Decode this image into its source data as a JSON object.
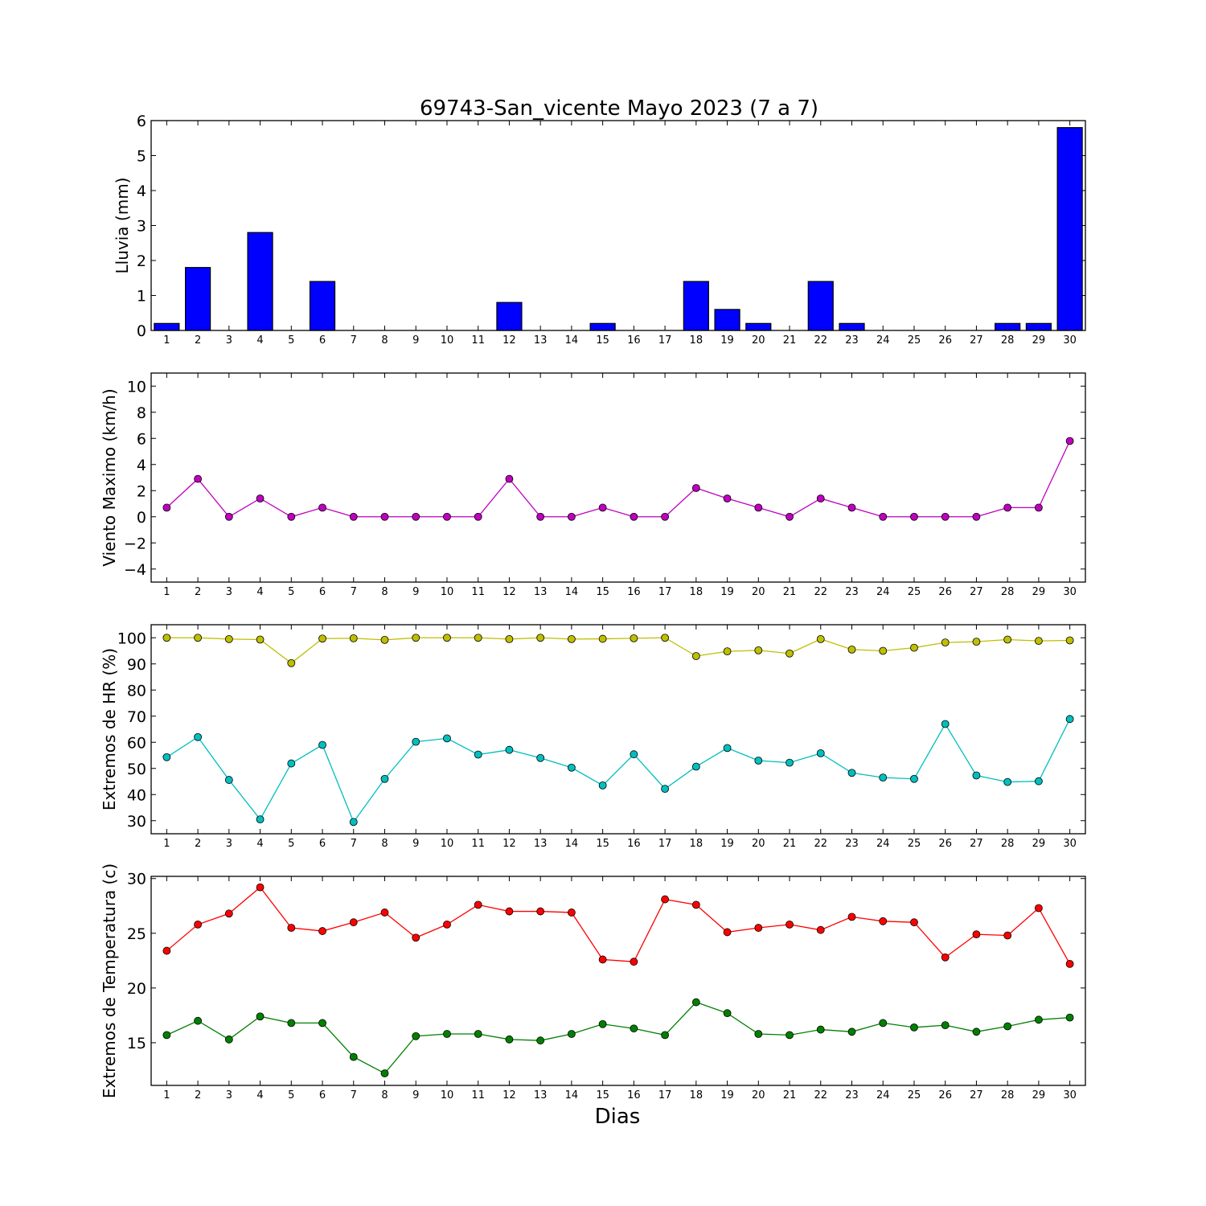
{
  "title": "69743-San_vicente Mayo 2023  (7 a 7)",
  "xlabel": "Dias",
  "chart_data": [
    {
      "type": "bar",
      "ylabel": "Lluvia (mm)",
      "ylim": [
        0,
        6
      ],
      "yticks": [
        "0",
        "1",
        "2",
        "3",
        "4",
        "5",
        "6"
      ],
      "categories": [
        "1",
        "2",
        "3",
        "4",
        "5",
        "6",
        "7",
        "8",
        "9",
        "10",
        "11",
        "12",
        "13",
        "14",
        "15",
        "16",
        "17",
        "18",
        "19",
        "20",
        "21",
        "22",
        "23",
        "24",
        "25",
        "26",
        "27",
        "28",
        "29",
        "30"
      ],
      "values": [
        0.2,
        1.8,
        0,
        2.8,
        0,
        1.4,
        0,
        0,
        0,
        0,
        0,
        0.8,
        0,
        0,
        0.2,
        0,
        0,
        1.4,
        0.6,
        0.2,
        0,
        1.4,
        0.2,
        0,
        0,
        0,
        0,
        0.2,
        0.2,
        5.8
      ],
      "color": "#0000ff"
    },
    {
      "type": "line",
      "ylabel": "Viento Maximo (km/h)",
      "ylim": [
        -5,
        11
      ],
      "yticks": [
        "−4",
        "−2",
        "0",
        "2",
        "4",
        "6",
        "8",
        "10"
      ],
      "categories": [
        "1",
        "2",
        "3",
        "4",
        "5",
        "6",
        "7",
        "8",
        "9",
        "10",
        "11",
        "12",
        "13",
        "14",
        "15",
        "16",
        "17",
        "18",
        "19",
        "20",
        "21",
        "22",
        "23",
        "24",
        "25",
        "26",
        "27",
        "28",
        "29",
        "30"
      ],
      "series": [
        {
          "values": [
            0.7,
            2.9,
            0,
            1.4,
            0,
            0.7,
            0,
            0,
            0,
            0,
            0,
            2.9,
            0,
            0,
            0.7,
            0,
            0,
            2.2,
            1.4,
            0.7,
            0,
            1.4,
            0.7,
            0,
            0,
            0,
            0,
            0.7,
            0.7,
            5.8
          ],
          "color": "#bf00bf"
        }
      ]
    },
    {
      "type": "line",
      "ylabel": "Extremos de HR (%)",
      "ylim": [
        25,
        105
      ],
      "yticks": [
        "30",
        "40",
        "50",
        "60",
        "70",
        "80",
        "90",
        "100"
      ],
      "categories": [
        "1",
        "2",
        "3",
        "4",
        "5",
        "6",
        "7",
        "8",
        "9",
        "10",
        "11",
        "12",
        "13",
        "14",
        "15",
        "16",
        "17",
        "18",
        "19",
        "20",
        "21",
        "22",
        "23",
        "24",
        "25",
        "26",
        "27",
        "28",
        "29",
        "30"
      ],
      "series": [
        {
          "values": [
            100,
            100,
            99.5,
            99.3,
            90.3,
            99.7,
            99.8,
            99.2,
            100,
            100,
            100,
            99.5,
            100,
            99.5,
            99.6,
            99.8,
            100,
            93,
            94.8,
            95.2,
            94,
            99.5,
            95.5,
            95,
            96.2,
            98.2,
            98.5,
            99.3,
            98.8,
            99
          ],
          "color": "#bfbf00"
        },
        {
          "values": [
            54.3,
            62,
            45.6,
            30.5,
            51.9,
            59,
            29.5,
            46,
            60.2,
            61.5,
            55.3,
            57.1,
            54,
            50.3,
            43.5,
            55.4,
            42.2,
            50.7,
            57.8,
            53,
            52.2,
            55.8,
            48.3,
            46.5,
            46,
            67,
            47.3,
            44.8,
            45.1,
            68.9
          ],
          "color": "#00bfbf"
        }
      ]
    },
    {
      "type": "line",
      "ylabel": "Extremos de Temperatura (c)",
      "ylim": [
        11.1,
        30.2
      ],
      "yticks": [
        "15",
        "20",
        "25",
        "30"
      ],
      "categories": [
        "1",
        "2",
        "3",
        "4",
        "5",
        "6",
        "7",
        "8",
        "9",
        "10",
        "11",
        "12",
        "13",
        "14",
        "15",
        "16",
        "17",
        "18",
        "19",
        "20",
        "21",
        "22",
        "23",
        "24",
        "25",
        "26",
        "27",
        "28",
        "29",
        "30"
      ],
      "series": [
        {
          "values": [
            23.4,
            25.8,
            26.8,
            29.2,
            25.5,
            25.2,
            26,
            26.9,
            24.6,
            25.8,
            27.6,
            27,
            27,
            26.9,
            22.6,
            22.4,
            28.1,
            27.6,
            25.1,
            25.5,
            25.8,
            25.3,
            26.5,
            26.1,
            26,
            22.8,
            24.9,
            24.8,
            27.3,
            22.2
          ],
          "color": "#ff0000"
        },
        {
          "values": [
            15.7,
            17,
            15.3,
            17.4,
            16.8,
            16.8,
            13.7,
            12.2,
            15.6,
            15.8,
            15.8,
            15.3,
            15.2,
            15.8,
            16.7,
            16.3,
            15.7,
            18.7,
            17.7,
            15.8,
            15.7,
            16.2,
            16,
            16.8,
            16.4,
            16.6,
            16,
            16.5,
            17.1,
            17.3
          ],
          "color": "#008000"
        }
      ]
    }
  ]
}
